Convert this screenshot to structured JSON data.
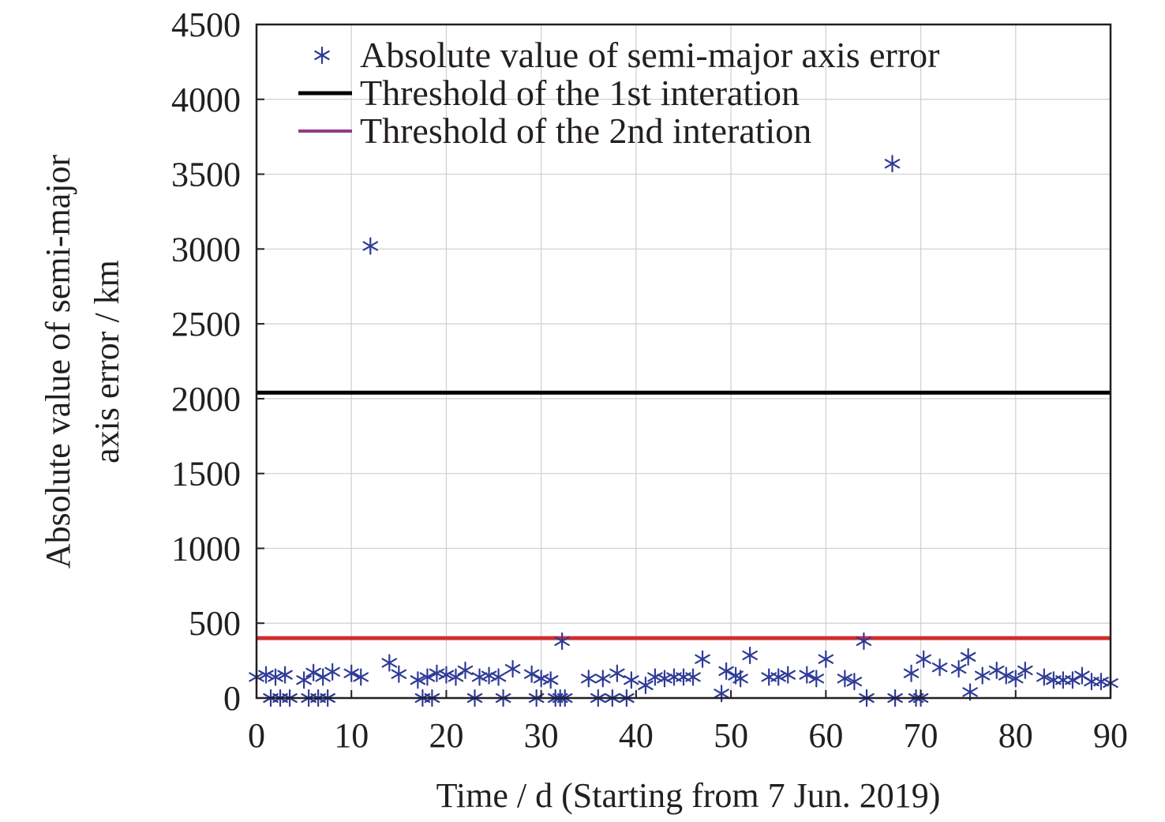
{
  "chart_data": {
    "type": "scatter",
    "title": "",
    "xlabel": "Time / d (Starting from 7 Jun. 2019)",
    "ylabel_lines": [
      "Absolute value of semi-major",
      "axis error / km"
    ],
    "xlim": [
      0,
      90
    ],
    "ylim": [
      0,
      4500
    ],
    "xticks": [
      "0",
      "10",
      "20",
      "30",
      "40",
      "50",
      "60",
      "70",
      "80",
      "90"
    ],
    "yticks": [
      "0",
      "500",
      "1000",
      "1500",
      "2000",
      "2500",
      "3000",
      "3500",
      "4000",
      "4500"
    ],
    "grid": true,
    "legend_position": "top",
    "series": [
      {
        "name": "Absolute value of semi-major axis error",
        "marker": "asterisk",
        "color": "#2e3b97",
        "points": [
          [
            0,
            140
          ],
          [
            1,
            155
          ],
          [
            1.5,
            0
          ],
          [
            2,
            140
          ],
          [
            2.5,
            0
          ],
          [
            3,
            155
          ],
          [
            3.5,
            0
          ],
          [
            5,
            120
          ],
          [
            5.5,
            0
          ],
          [
            6,
            170
          ],
          [
            6.5,
            0
          ],
          [
            7,
            140
          ],
          [
            7.5,
            0
          ],
          [
            8,
            175
          ],
          [
            10,
            165
          ],
          [
            11,
            140
          ],
          [
            12,
            3020
          ],
          [
            14,
            235
          ],
          [
            15,
            160
          ],
          [
            17,
            120
          ],
          [
            17.5,
            0
          ],
          [
            18,
            140
          ],
          [
            18.5,
            0
          ],
          [
            19,
            165
          ],
          [
            20,
            155
          ],
          [
            21,
            140
          ],
          [
            22,
            185
          ],
          [
            23,
            0
          ],
          [
            23.5,
            140
          ],
          [
            24.5,
            150
          ],
          [
            25.5,
            140
          ],
          [
            26,
            0
          ],
          [
            27,
            195
          ],
          [
            29,
            160
          ],
          [
            29.5,
            0
          ],
          [
            30,
            130
          ],
          [
            31,
            120
          ],
          [
            31.5,
            0
          ],
          [
            32,
            0
          ],
          [
            32.2,
            380
          ],
          [
            32.5,
            0
          ],
          [
            35,
            130
          ],
          [
            36,
            0
          ],
          [
            36.5,
            130
          ],
          [
            37.5,
            0
          ],
          [
            38,
            165
          ],
          [
            39,
            0
          ],
          [
            39.5,
            120
          ],
          [
            41,
            85
          ],
          [
            42,
            140
          ],
          [
            43,
            130
          ],
          [
            44,
            140
          ],
          [
            45,
            140
          ],
          [
            46,
            140
          ],
          [
            47,
            260
          ],
          [
            49,
            30
          ],
          [
            49.5,
            180
          ],
          [
            50.5,
            150
          ],
          [
            51,
            130
          ],
          [
            52,
            285
          ],
          [
            54,
            140
          ],
          [
            55,
            140
          ],
          [
            56,
            155
          ],
          [
            58,
            155
          ],
          [
            59,
            130
          ],
          [
            60,
            260
          ],
          [
            62,
            130
          ],
          [
            63,
            110
          ],
          [
            64,
            380
          ],
          [
            64.3,
            0
          ],
          [
            67,
            3570
          ],
          [
            67.3,
            0
          ],
          [
            69,
            165
          ],
          [
            69.5,
            0
          ],
          [
            70,
            0
          ],
          [
            70.3,
            260
          ],
          [
            72,
            205
          ],
          [
            74,
            195
          ],
          [
            75,
            275
          ],
          [
            75.2,
            40
          ],
          [
            76.5,
            150
          ],
          [
            78,
            185
          ],
          [
            79,
            150
          ],
          [
            80,
            130
          ],
          [
            81,
            185
          ],
          [
            83,
            140
          ],
          [
            84,
            120
          ],
          [
            85,
            120
          ],
          [
            86,
            120
          ],
          [
            87,
            150
          ],
          [
            88,
            110
          ],
          [
            89,
            110
          ],
          [
            90,
            100
          ]
        ]
      },
      {
        "name": "Threshold of the 1st interation",
        "type": "hline",
        "y": 2040,
        "color": "#000000"
      },
      {
        "name": "Threshold of the 2nd interation",
        "type": "hline",
        "y": 400,
        "color": "#d02d2d",
        "legend_color": "#8e3a8e"
      }
    ]
  }
}
